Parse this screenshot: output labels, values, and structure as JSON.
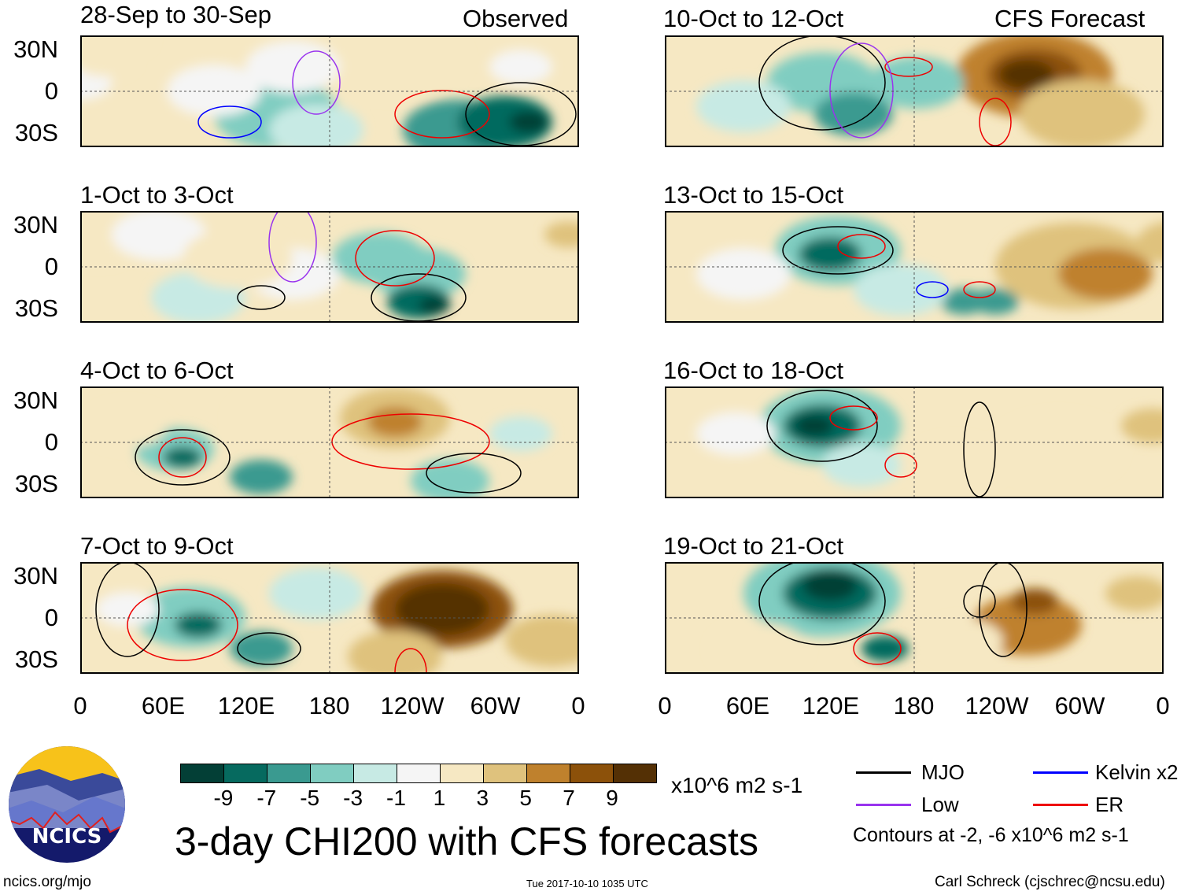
{
  "header": {
    "observed_label": "Observed",
    "forecast_label": "CFS Forecast"
  },
  "panels": {
    "observed": [
      {
        "title": "28-Sep to 30-Sep"
      },
      {
        "title": "1-Oct to 3-Oct"
      },
      {
        "title": "4-Oct to 6-Oct"
      },
      {
        "title": "7-Oct to 9-Oct"
      }
    ],
    "forecast": [
      {
        "title": "10-Oct to 12-Oct"
      },
      {
        "title": "13-Oct to 15-Oct"
      },
      {
        "title": "16-Oct to 18-Oct"
      },
      {
        "title": "19-Oct to 21-Oct"
      }
    ]
  },
  "axes": {
    "lat_labels": [
      "30N",
      "0",
      "30S"
    ],
    "lon_labels": [
      "0",
      "60E",
      "120E",
      "180",
      "120W",
      "60W",
      "0"
    ]
  },
  "colorbar": {
    "colors": [
      "#033f36",
      "#066a5f",
      "#3a9a90",
      "#80cdc1",
      "#c7eae4",
      "#f5f5f5",
      "#f6e8c3",
      "#dfc27d",
      "#bf812d",
      "#8c510a",
      "#543005"
    ],
    "labels": [
      "-9",
      "-7",
      "-5",
      "-3",
      "-1",
      "1",
      "3",
      "5",
      "7",
      "9"
    ],
    "units": "x10^6 m2 s-1"
  },
  "legend": {
    "items": [
      {
        "label": "MJO",
        "color": "#000000"
      },
      {
        "label": "Kelvin x2",
        "color": "#0000ff"
      },
      {
        "label": "Low",
        "color": "#9933ee"
      },
      {
        "label": "ER",
        "color": "#ee0000"
      }
    ],
    "contours_note": "Contours at -2, -6 x10^6 m2 s-1"
  },
  "title": "3-day CHI200 with CFS forecasts",
  "logo": {
    "text": "NCICS"
  },
  "footer": {
    "url": "ncics.org/mjo",
    "timestamp": "Tue 2017-10-10 1035 UTC",
    "author": "Carl Schreck (cjschrec@ncsu.edu)"
  }
}
